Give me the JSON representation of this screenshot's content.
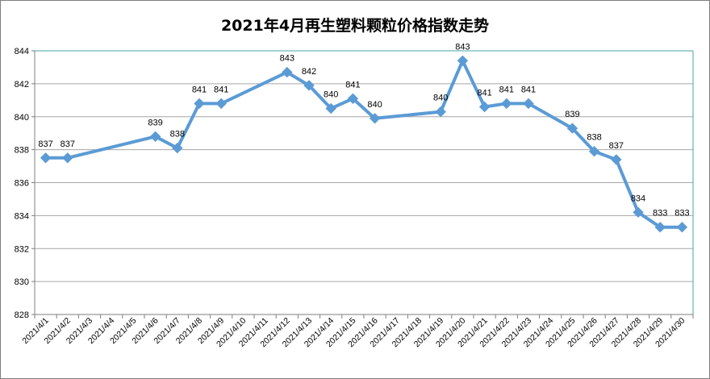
{
  "chart_data": {
    "type": "line",
    "title": "2021年4月再生塑料颗粒价格指数走势",
    "xlabel": "",
    "ylabel": "",
    "categories": [
      "2021/4/1",
      "2021/4/2",
      "2021/4/3",
      "2021/4/4",
      "2021/4/5",
      "2021/4/6",
      "2021/4/7",
      "2021/4/8",
      "2021/4/9",
      "2021/4/10",
      "2021/4/11",
      "2021/4/12",
      "2021/4/13",
      "2021/4/14",
      "2021/4/15",
      "2021/4/16",
      "2021/4/17",
      "2021/4/18",
      "2021/4/19",
      "2021/4/20",
      "2021/4/21",
      "2021/4/22",
      "2021/4/23",
      "2021/4/24",
      "2021/4/25",
      "2021/4/26",
      "2021/4/27",
      "2021/4/28",
      "2021/4/29",
      "2021/4/30"
    ],
    "points": [
      {
        "date": "2021/4/1",
        "value": 837.5,
        "label": "837"
      },
      {
        "date": "2021/4/2",
        "value": 837.5,
        "label": "837"
      },
      {
        "date": "2021/4/6",
        "value": 838.8,
        "label": "839"
      },
      {
        "date": "2021/4/7",
        "value": 838.1,
        "label": "838"
      },
      {
        "date": "2021/4/8",
        "value": 840.8,
        "label": "841"
      },
      {
        "date": "2021/4/9",
        "value": 840.8,
        "label": "841"
      },
      {
        "date": "2021/4/12",
        "value": 842.7,
        "label": "843"
      },
      {
        "date": "2021/4/13",
        "value": 841.9,
        "label": "842"
      },
      {
        "date": "2021/4/14",
        "value": 840.5,
        "label": "840"
      },
      {
        "date": "2021/4/15",
        "value": 841.1,
        "label": "841"
      },
      {
        "date": "2021/4/16",
        "value": 839.9,
        "label": "840"
      },
      {
        "date": "2021/4/19",
        "value": 840.3,
        "label": "840"
      },
      {
        "date": "2021/4/20",
        "value": 843.4,
        "label": "843"
      },
      {
        "date": "2021/4/21",
        "value": 840.6,
        "label": "841"
      },
      {
        "date": "2021/4/22",
        "value": 840.8,
        "label": "841"
      },
      {
        "date": "2021/4/23",
        "value": 840.8,
        "label": "841"
      },
      {
        "date": "2021/4/25",
        "value": 839.3,
        "label": "839"
      },
      {
        "date": "2021/4/26",
        "value": 837.9,
        "label": "838"
      },
      {
        "date": "2021/4/27",
        "value": 837.4,
        "label": "837"
      },
      {
        "date": "2021/4/28",
        "value": 834.2,
        "label": "834"
      },
      {
        "date": "2021/4/29",
        "value": 833.3,
        "label": "833"
      },
      {
        "date": "2021/4/30",
        "value": 833.3,
        "label": "833"
      }
    ],
    "ylim": [
      828,
      844
    ],
    "yticks": [
      828,
      830,
      832,
      834,
      836,
      838,
      840,
      842,
      844
    ],
    "grid": true,
    "legend": "none",
    "colors": {
      "line": "#5b9bd5",
      "grid": "#a6a6a6",
      "plot_border": "#4ba3a8",
      "outer_border": "#7f7f7f",
      "axis": "#7f7f7f"
    }
  }
}
